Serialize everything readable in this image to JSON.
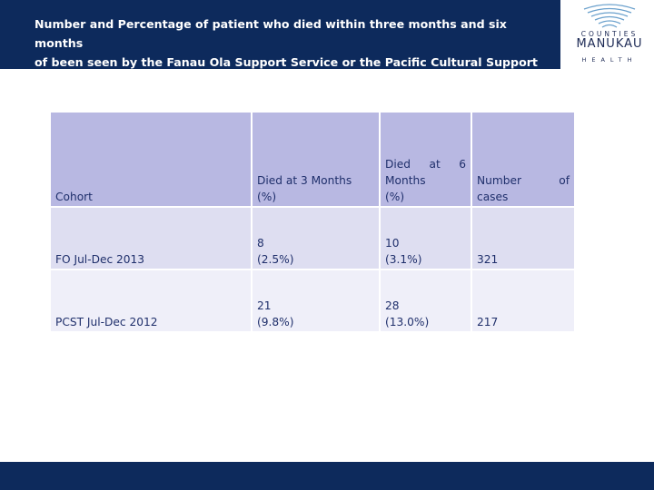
{
  "header": {
    "title_line1": "Number and Percentage of patient who died within three months and six months",
    "title_line2": "of been seen by the Fanau Ola Support Service or the Pacific Cultural Support Team"
  },
  "logo": {
    "line1": "COUNTIES",
    "line2": "MANUKAU",
    "line3": "HEALTH"
  },
  "table": {
    "headers": [
      {
        "lines": [
          "Cohort"
        ]
      },
      {
        "lines": [
          "Died at 3 Months",
          "(%)"
        ]
      },
      {
        "lines": [
          "Died at 6",
          "Months",
          "(%)"
        ]
      },
      {
        "lines": [
          "Number of",
          "cases"
        ]
      }
    ],
    "rows": [
      {
        "cohort": "FO Jul-Dec 2013",
        "d3_count": "8",
        "d3_pct": "(2.5%)",
        "d6_count": "10",
        "d6_pct": "(3.1%)",
        "cases": "321"
      },
      {
        "cohort": "PCST Jul-Dec 2012",
        "d3_count": "21",
        "d3_pct": "(9.8%)",
        "d6_count": "28",
        "d6_pct": "(13.0%)",
        "cases": "217"
      }
    ]
  },
  "colors": {
    "header_band": "#0d2a5c",
    "table_head": "#b8b8e2",
    "table_row1": "#dedef1",
    "table_row2": "#efeff9",
    "cell_text": "#1f2f6b"
  }
}
